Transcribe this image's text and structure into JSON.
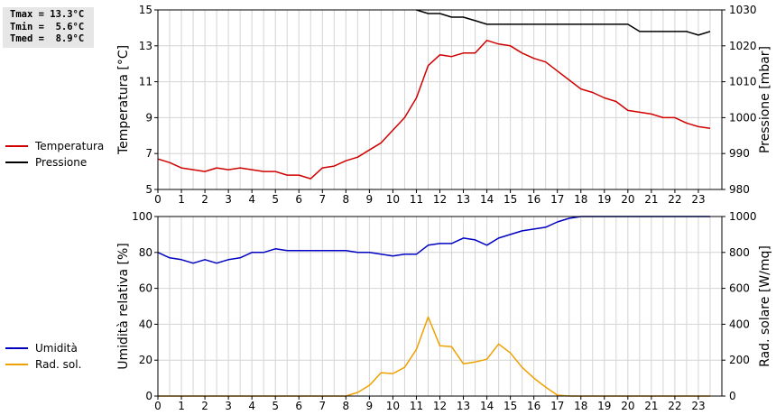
{
  "stats": {
    "tmax": "Tmax = 13.3°C",
    "tmin": "Tmin =  5.6°C",
    "tmed": "Tmed =  8.9°C"
  },
  "colors": {
    "temperature": "#d00000",
    "pressure": "#000000",
    "humidity": "#0000c0",
    "solar": "#f0a000",
    "grid": "#d4d4d4",
    "plot_bg": "#ffffff"
  },
  "chart_data": [
    {
      "type": "line",
      "xlabel": "",
      "x_ticks": [
        "0",
        "1",
        "2",
        "3",
        "4",
        "5",
        "6",
        "7",
        "8",
        "9",
        "10",
        "11",
        "12",
        "13",
        "14",
        "15",
        "16",
        "17",
        "18",
        "19",
        "20",
        "21",
        "22",
        "23"
      ],
      "xlim": [
        0,
        24
      ],
      "ylabel": "Temperatura [°C]",
      "ylim": [
        5,
        15
      ],
      "y_ticks": [
        "5",
        "7",
        "9",
        "11",
        "13",
        "15"
      ],
      "y2label": "Pressione [mbar]",
      "y2lim": [
        980,
        1030
      ],
      "y2_ticks": [
        "980",
        "990",
        "1000",
        "1010",
        "1020",
        "1030"
      ],
      "grid": true,
      "legend": "left",
      "series": [
        {
          "name": "Temperatura",
          "axis": "left",
          "x": [
            0,
            0.5,
            1,
            1.5,
            2,
            2.5,
            3,
            3.5,
            4,
            4.5,
            5,
            5.5,
            6,
            6.5,
            7,
            7.5,
            8,
            8.5,
            9,
            9.5,
            10,
            10.5,
            11,
            11.5,
            12,
            12.5,
            13,
            13.5,
            14,
            14.5,
            15,
            15.5,
            16,
            16.5,
            17,
            17.5,
            18,
            18.5,
            19,
            19.5,
            20,
            20.5,
            21,
            21.5,
            22,
            22.5,
            23,
            23.5
          ],
          "values": [
            6.7,
            6.5,
            6.2,
            6.1,
            6.0,
            6.2,
            6.1,
            6.2,
            6.1,
            6.0,
            6.0,
            5.8,
            5.8,
            5.6,
            6.2,
            6.3,
            6.6,
            6.8,
            7.2,
            7.6,
            8.3,
            9.0,
            10.1,
            11.9,
            12.5,
            12.4,
            12.6,
            12.6,
            13.3,
            13.1,
            13.0,
            12.6,
            12.3,
            12.1,
            11.6,
            11.1,
            10.6,
            10.4,
            10.1,
            9.9,
            9.4,
            9.3,
            9.2,
            9.0,
            9.0,
            8.7,
            8.5,
            8.4
          ]
        },
        {
          "name": "Pressione",
          "axis": "right",
          "x": [
            11,
            11.5,
            12,
            12.5,
            13,
            13.5,
            14,
            14.5,
            15,
            15.5,
            16,
            16.5,
            17,
            17.5,
            18,
            18.5,
            19,
            19.5,
            20,
            20.5,
            21,
            21.5,
            22,
            22.5,
            23,
            23.5
          ],
          "values": [
            1030,
            1029,
            1029,
            1028,
            1028,
            1027,
            1026,
            1026,
            1026,
            1026,
            1026,
            1026,
            1026,
            1026,
            1026,
            1026,
            1026,
            1026,
            1026,
            1024,
            1024,
            1024,
            1024,
            1024,
            1023,
            1024
          ]
        }
      ]
    },
    {
      "type": "line",
      "xlabel": "",
      "x_ticks": [
        "0",
        "1",
        "2",
        "3",
        "4",
        "5",
        "6",
        "7",
        "8",
        "9",
        "10",
        "11",
        "12",
        "13",
        "14",
        "15",
        "16",
        "17",
        "18",
        "19",
        "20",
        "21",
        "22",
        "23"
      ],
      "xlim": [
        0,
        24
      ],
      "ylabel": "Umidità relativa [%]",
      "ylim": [
        0,
        100
      ],
      "y_ticks": [
        "0",
        "20",
        "40",
        "60",
        "80",
        "100"
      ],
      "y2label": "Rad. solare [W/mq]",
      "y2lim": [
        0,
        1000
      ],
      "y2_ticks": [
        "0",
        "200",
        "400",
        "600",
        "800",
        "1000"
      ],
      "grid": true,
      "legend": "left",
      "series": [
        {
          "name": "Umidità",
          "axis": "left",
          "x": [
            0,
            0.5,
            1,
            1.5,
            2,
            2.5,
            3,
            3.5,
            4,
            4.5,
            5,
            5.5,
            6,
            6.5,
            7,
            7.5,
            8,
            8.5,
            9,
            9.5,
            10,
            10.5,
            11,
            11.5,
            12,
            12.5,
            13,
            13.5,
            14,
            14.5,
            15,
            15.5,
            16,
            16.5,
            17,
            17.5,
            18,
            18.5,
            19,
            19.5,
            20,
            20.5,
            21,
            21.5,
            22,
            22.5,
            23,
            23.5
          ],
          "values": [
            80,
            77,
            76,
            74,
            76,
            74,
            76,
            77,
            80,
            80,
            82,
            81,
            81,
            81,
            81,
            81,
            81,
            80,
            80,
            79,
            78,
            79,
            79,
            84,
            85,
            85,
            88,
            87,
            84,
            88,
            90,
            92,
            93,
            94,
            97,
            99,
            100,
            100,
            100,
            100,
            100,
            100,
            100,
            100,
            100,
            100,
            100,
            100
          ]
        },
        {
          "name": "Rad. sol.",
          "axis": "right",
          "x": [
            0,
            0.5,
            1,
            1.5,
            2,
            2.5,
            3,
            3.5,
            4,
            4.5,
            5,
            5.5,
            6,
            6.5,
            7,
            7.5,
            8,
            8.5,
            9,
            9.5,
            10,
            10.5,
            11,
            11.5,
            12,
            12.5,
            13,
            13.5,
            14,
            14.5,
            15,
            15.5,
            16,
            16.5,
            17,
            17.5,
            18,
            18.5,
            19,
            19.5,
            20,
            20.5,
            21,
            21.5,
            22,
            22.5,
            23,
            23.5
          ],
          "values": [
            0,
            0,
            0,
            0,
            0,
            0,
            0,
            0,
            0,
            0,
            0,
            0,
            0,
            0,
            0,
            0,
            0,
            20,
            60,
            130,
            125,
            160,
            260,
            440,
            280,
            275,
            180,
            190,
            205,
            290,
            240,
            160,
            100,
            50,
            5,
            0,
            0,
            0,
            0,
            0,
            0,
            0,
            0,
            0,
            0,
            0,
            0,
            0
          ]
        }
      ]
    }
  ]
}
